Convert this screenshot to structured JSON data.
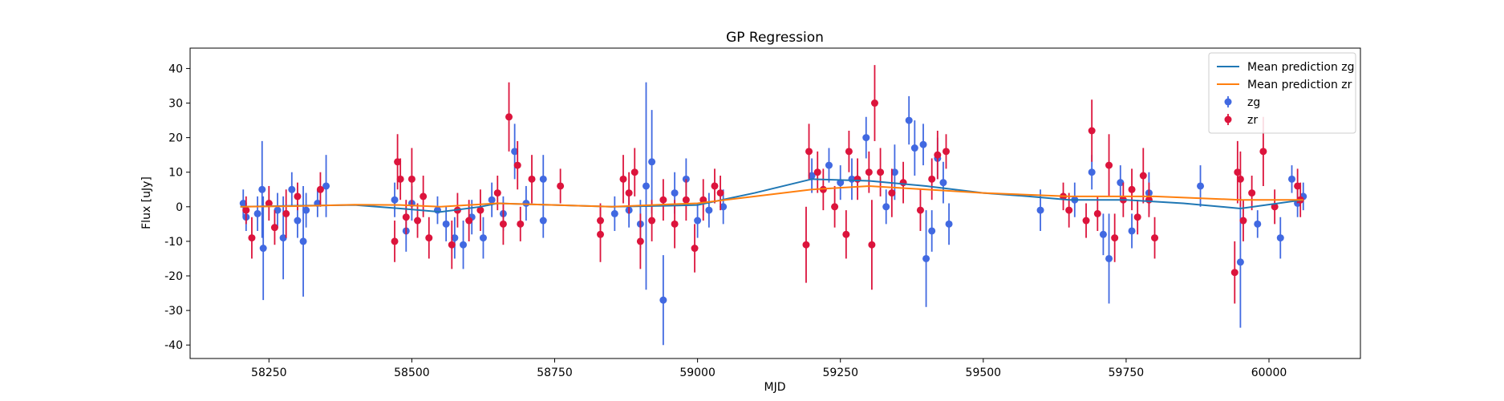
{
  "chart_data": {
    "type": "errorbar",
    "title": "GP Regression",
    "xlabel": "MJD",
    "ylabel": "Flux [uJy]",
    "xlim": [
      58112,
      60160
    ],
    "ylim": [
      -43.9,
      45.9
    ],
    "xticks": [
      58250,
      58500,
      58750,
      59000,
      59250,
      59500,
      59750,
      60000
    ],
    "yticks": [
      -40,
      -30,
      -20,
      -10,
      0,
      10,
      20,
      30,
      40
    ],
    "legend": "upper right",
    "series": [
      {
        "name": "Mean prediction zg",
        "kind": "line",
        "color": "#1f77b4",
        "x": [
          58200,
          58300,
          58400,
          58480,
          58550,
          58620,
          58650,
          58750,
          58850,
          58950,
          59000,
          59100,
          59200,
          59300,
          59400,
          59500,
          59580,
          59650,
          59750,
          59850,
          59950,
          60060
        ],
        "values": [
          0,
          0.3,
          0.5,
          -0.5,
          -1.5,
          0,
          1,
          0.5,
          0,
          0.3,
          0.5,
          4,
          8,
          7.5,
          6,
          4,
          3,
          2,
          2,
          1,
          -0.5,
          2
        ]
      },
      {
        "name": "Mean prediction zr",
        "kind": "line",
        "color": "#ff7f0e",
        "x": [
          58200,
          58300,
          58400,
          58480,
          58550,
          58650,
          58750,
          58850,
          58950,
          59000,
          59100,
          59200,
          59300,
          59400,
          59500,
          59650,
          59800,
          59950,
          60060
        ],
        "values": [
          0,
          0.2,
          0.6,
          0.5,
          0,
          1,
          0.5,
          0,
          0.7,
          1,
          3,
          5,
          6,
          5,
          4,
          3,
          3,
          2,
          2
        ]
      },
      {
        "name": "zg",
        "kind": "errorbar",
        "color": "#4169e1",
        "x": [
          58205,
          58210,
          58230,
          58238,
          58240,
          58265,
          58275,
          58290,
          58300,
          58310,
          58315,
          58335,
          58350,
          58470,
          58490,
          58500,
          58545,
          58560,
          58575,
          58590,
          58605,
          58625,
          58640,
          58660,
          58680,
          58700,
          58730,
          58730,
          58855,
          58880,
          58900,
          58910,
          58920,
          58940,
          58960,
          58980,
          59000,
          59020,
          59045,
          59200,
          59230,
          59250,
          59270,
          59295,
          59330,
          59345,
          59370,
          59380,
          59395,
          59400,
          59410,
          59420,
          59430,
          59440,
          59600,
          59660,
          59690,
          59710,
          59720,
          59740,
          59760,
          59790,
          59880,
          59950,
          59980,
          60020,
          60040,
          60050,
          60060
        ],
        "values": [
          1,
          -3,
          -2,
          5,
          -12,
          -1,
          -9,
          5,
          -4,
          -10,
          -1,
          1,
          6,
          2,
          -7,
          1,
          -1,
          -5,
          -9,
          -11,
          -3,
          -9,
          2,
          -2,
          16,
          1,
          8,
          -4,
          -2,
          -1,
          -5,
          6,
          13,
          -27,
          4,
          8,
          -4,
          -1,
          0,
          9,
          12,
          7,
          8,
          20,
          0,
          10,
          25,
          17,
          18,
          -15,
          -7,
          14,
          7,
          -5,
          -1,
          2,
          10,
          -8,
          -15,
          7,
          -7,
          4,
          6,
          -16,
          -5,
          -9,
          8,
          1,
          3
        ],
        "errors": [
          4,
          4,
          5,
          14,
          15,
          5,
          12,
          5,
          5,
          16,
          5,
          4,
          9,
          5,
          6,
          5,
          4,
          5,
          6,
          7,
          5,
          6,
          5,
          5,
          8,
          5,
          7,
          5,
          5,
          5,
          7,
          30,
          15,
          13,
          6,
          6,
          5,
          5,
          5,
          5,
          5,
          5,
          6,
          6,
          5,
          8,
          7,
          8,
          6,
          14,
          6,
          6,
          6,
          6,
          6,
          5,
          5,
          6,
          13,
          5,
          5,
          6,
          6,
          19,
          4,
          6,
          4,
          4,
          4
        ]
      },
      {
        "name": "zr",
        "kind": "errorbar",
        "color": "#dc143c",
        "x": [
          58210,
          58220,
          58250,
          58260,
          58280,
          58300,
          58340,
          58470,
          58475,
          58480,
          58490,
          58500,
          58510,
          58520,
          58530,
          58570,
          58580,
          58600,
          58620,
          58650,
          58660,
          58670,
          58685,
          58690,
          58710,
          58760,
          58830,
          58830,
          58870,
          58880,
          58890,
          58900,
          58920,
          58940,
          58960,
          58980,
          58995,
          59010,
          59030,
          59040,
          59190,
          59195,
          59210,
          59220,
          59240,
          59260,
          59265,
          59280,
          59300,
          59305,
          59310,
          59320,
          59340,
          59360,
          59390,
          59410,
          59420,
          59435,
          59640,
          59650,
          59680,
          59690,
          59700,
          59720,
          59730,
          59745,
          59760,
          59770,
          59780,
          59790,
          59800,
          59940,
          59945,
          59950,
          59955,
          59970,
          59990,
          60010,
          60050,
          60055
        ],
        "values": [
          -1,
          -9,
          1,
          -6,
          -2,
          3,
          5,
          -10,
          13,
          8,
          -3,
          8,
          -4,
          3,
          -9,
          -11,
          -1,
          -4,
          -1,
          4,
          -5,
          26,
          12,
          -5,
          8,
          6,
          -8,
          -4,
          8,
          4,
          10,
          -10,
          -4,
          2,
          -5,
          2,
          -12,
          2,
          6,
          4,
          -11,
          16,
          10,
          5,
          0,
          -8,
          16,
          8,
          10,
          -11,
          30,
          10,
          4,
          7,
          -1,
          8,
          15,
          16,
          3,
          -1,
          -4,
          22,
          -2,
          12,
          -9,
          2,
          5,
          -3,
          9,
          2,
          -9,
          -19,
          10,
          8,
          -4,
          4,
          16,
          0,
          6,
          2
        ],
        "errors": [
          4,
          6,
          5,
          5,
          7,
          4,
          5,
          6,
          8,
          6,
          5,
          9,
          5,
          6,
          6,
          7,
          5,
          6,
          6,
          5,
          6,
          10,
          7,
          5,
          7,
          5,
          8,
          5,
          7,
          6,
          7,
          8,
          6,
          6,
          7,
          6,
          7,
          6,
          5,
          5,
          11,
          8,
          6,
          6,
          6,
          7,
          6,
          6,
          6,
          13,
          11,
          7,
          7,
          6,
          6,
          6,
          7,
          5,
          4,
          5,
          5,
          9,
          5,
          9,
          7,
          5,
          6,
          5,
          8,
          5,
          6,
          9,
          9,
          8,
          6,
          5,
          10,
          5,
          5,
          5
        ]
      }
    ]
  }
}
